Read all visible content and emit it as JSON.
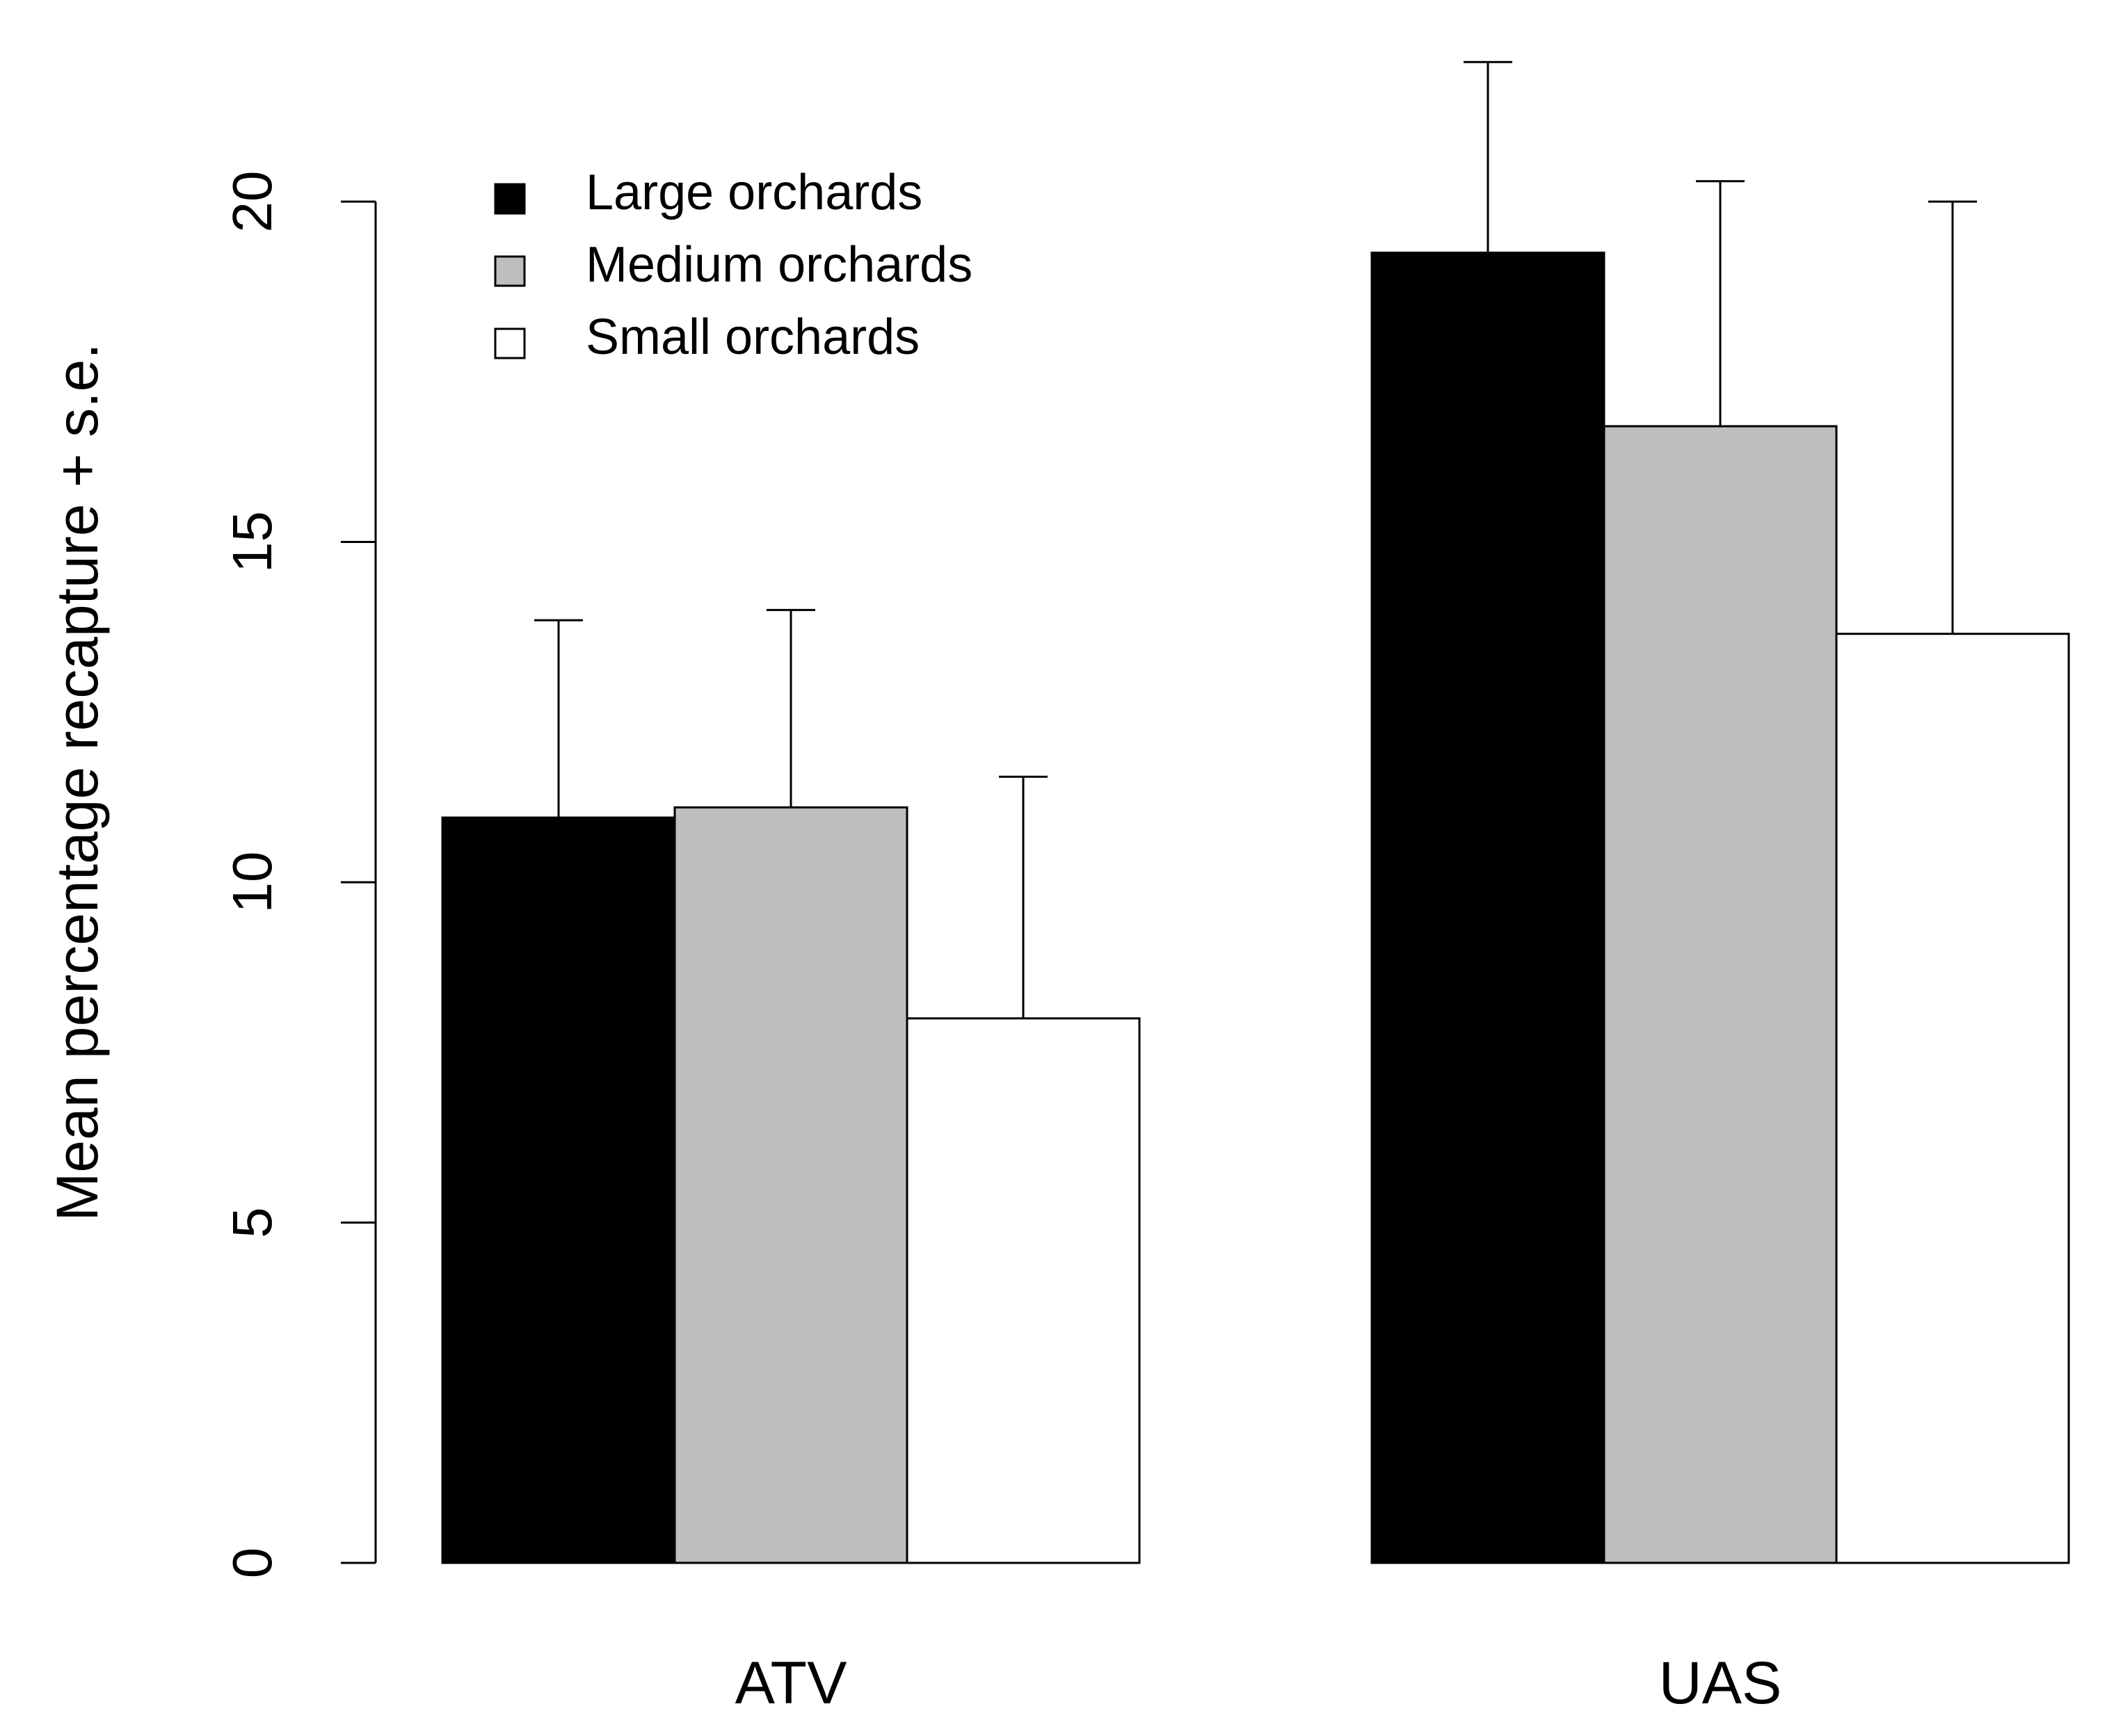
{
  "chart_data": {
    "type": "bar",
    "title": "",
    "xlabel": "",
    "ylabel": "Mean percentage recapture + s.e.",
    "categories": [
      "ATV",
      "UAS"
    ],
    "series": [
      {
        "name": "Large orchards",
        "color": "#000000",
        "values": [
          10.95,
          19.25
        ],
        "se": [
          2.9,
          2.8
        ]
      },
      {
        "name": "Medium orchards",
        "color": "#bebebe",
        "values": [
          11.1,
          16.7
        ],
        "se": [
          2.9,
          3.6
        ]
      },
      {
        "name": "Small orchards",
        "color": "#ffffff",
        "values": [
          8.0,
          13.65
        ],
        "se": [
          3.55,
          6.35
        ]
      }
    ],
    "yticks": [
      "0",
      "5",
      "10",
      "15",
      "20"
    ],
    "ylim": [
      0,
      20
    ],
    "grid": false,
    "legend_position": "top-left"
  }
}
